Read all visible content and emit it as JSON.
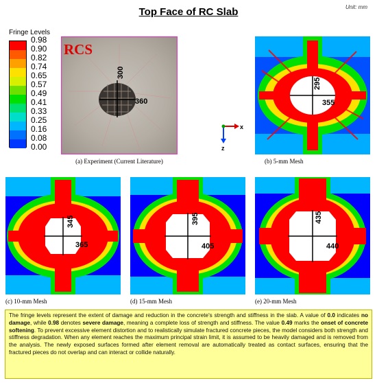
{
  "title": "Top Face of RC Slab",
  "unit": "Unit: mm",
  "legend": {
    "title": "Fringe Levels",
    "levels": [
      "0.98",
      "0.90",
      "0.82",
      "0.74",
      "0.65",
      "0.57",
      "0.49",
      "0.41",
      "0.33",
      "0.25",
      "0.16",
      "0.08",
      "0.00"
    ],
    "colors": [
      "#ff0000",
      "#ff5a00",
      "#ff9f00",
      "#ffe100",
      "#d8f000",
      "#6ee000",
      "#00e000",
      "#00e070",
      "#00ddc8",
      "#00b6ff",
      "#0070ff",
      "#0038ff",
      "#0000ff"
    ]
  },
  "axes": {
    "x": "x",
    "z": "z"
  },
  "panels": [
    {
      "id": "a",
      "caption": "(a) Experiment (Current Literature)",
      "label": "RCS",
      "dim_v": "300",
      "dim_h": "360"
    },
    {
      "id": "b",
      "caption": "(b) 5-mm Mesh",
      "dim_v": "295",
      "dim_h": "355"
    },
    {
      "id": "c",
      "caption": "(c) 10-mm Mesh",
      "dim_v": "345",
      "dim_h": "365"
    },
    {
      "id": "d",
      "caption": "(d) 15-mm Mesh",
      "dim_v": "395",
      "dim_h": "405"
    },
    {
      "id": "e",
      "caption": "(e) 20-mm Mesh",
      "dim_v": "435",
      "dim_h": "440"
    }
  ],
  "note": {
    "p1": "The fringe levels represent the extent of damage and reduction in the concrete's strength and stiffness in the slab. A value of ",
    "b1": "0.0",
    "p2": " indicates ",
    "b2": "no damage",
    "p3": ", while ",
    "b3": "0.98",
    "p4": " denotes ",
    "b4": "severe damage",
    "p5": ", meaning a complete loss of strength and stiffness. The value ",
    "b5": "0.49",
    "p6": " marks the ",
    "b6": "onset of concrete softening",
    "p7": ". To prevent excessive element distortion and to realistically simulate fractured concrete pieces, the model considers both strength and stiffness degradation. When any element reaches the maximum principal strain limit, it is assumed to be heavily damaged and is removed from the analysis. The newly exposed surfaces formed after element removal are automatically treated as contact surfaces, ensuring that the fractured pieces do not overlap and can interact or collide naturally."
  }
}
